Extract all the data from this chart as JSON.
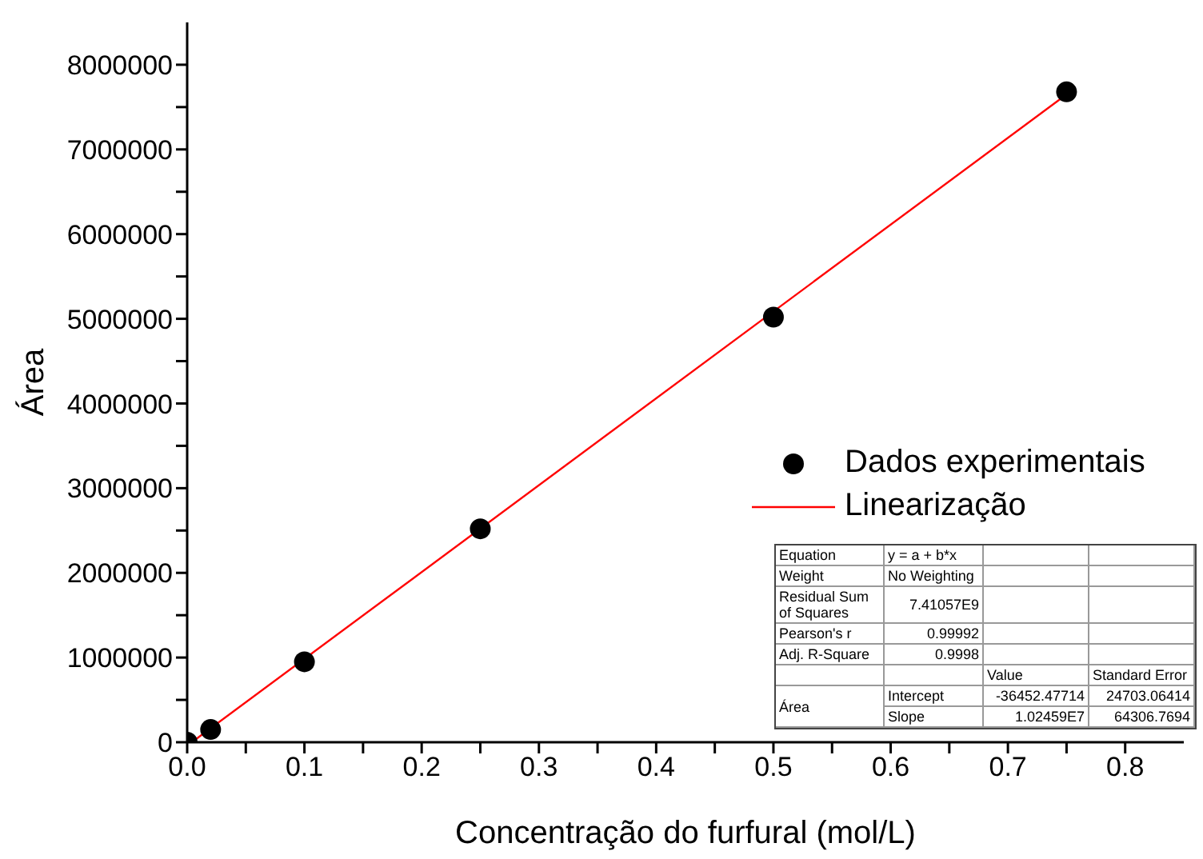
{
  "chart_data": {
    "type": "scatter",
    "xlabel": "Concentração do furfural (mol/L)",
    "ylabel": "Área",
    "xlim": [
      0,
      0.85
    ],
    "xticks": [
      {
        "value": 0,
        "label": "0.0"
      },
      {
        "value": 0.05,
        "label": null
      },
      0.1,
      {
        "value": 0.15,
        "label": null
      },
      0.2,
      {
        "value": 0.25,
        "label": null
      },
      0.3,
      {
        "value": 0.35,
        "label": null
      },
      0.4,
      {
        "value": 0.45,
        "label": null
      },
      0.5,
      {
        "value": 0.55,
        "label": null
      },
      0.6,
      {
        "value": 0.65,
        "label": null
      },
      0.7,
      {
        "value": 0.75,
        "label": null
      },
      0.8
    ],
    "ylim": [
      0,
      8500000
    ],
    "yticks": [
      0,
      {
        "value": 500000,
        "label": null
      },
      1000000,
      {
        "value": 1500000,
        "label": null
      },
      2000000,
      {
        "value": 2500000,
        "label": null
      },
      3000000,
      {
        "value": 3500000,
        "label": null
      },
      4000000,
      {
        "value": 4500000,
        "label": null
      },
      5000000,
      {
        "value": 5500000,
        "label": null
      },
      6000000,
      {
        "value": 6500000,
        "label": null
      },
      7000000,
      {
        "value": 7500000,
        "label": null
      },
      8000000
    ],
    "grid": false,
    "legend": "right",
    "marker": "circle",
    "series": [
      {
        "name": "Dados experimentais",
        "color": "#000000",
        "x": [
          0,
          0.02,
          0.1,
          0.25,
          0.5,
          0.75
        ],
        "values": [
          0,
          150000,
          950000,
          2520000,
          5020000,
          7680000
        ]
      },
      {
        "name": "Linearização",
        "type": "line",
        "color": "#ff0000",
        "marker": "none",
        "line_style": "solid",
        "x": [
          0.004,
          0.75
        ],
        "values": [
          0,
          7650000
        ]
      }
    ],
    "annotations": [
      "Equation",
      "y = a + b*x",
      "Weight",
      "No Weighting",
      "Residual Sum of Squares",
      "7.41057E9",
      "Pearson's r",
      "0.99992",
      "Adj. R-Square",
      "0.9998",
      "Value",
      "Standard Error",
      "Área",
      "Intercept",
      "-36452.47714",
      "24703.06414",
      "Slope",
      "1.02459E7",
      "64306.7694"
    ]
  }
}
